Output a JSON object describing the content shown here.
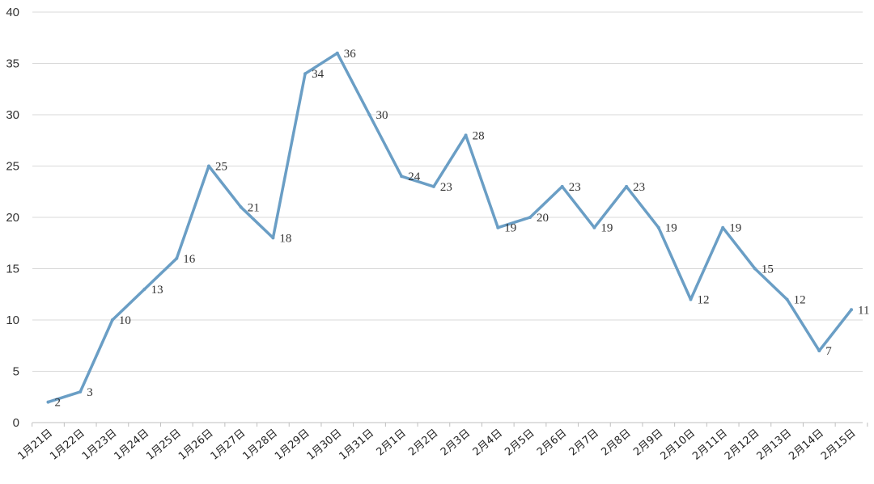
{
  "chart_data": {
    "type": "line",
    "title": "",
    "xlabel": "",
    "ylabel": "",
    "ylim": [
      0,
      40
    ],
    "yticks": [
      0,
      5,
      10,
      15,
      20,
      25,
      30,
      35,
      40
    ],
    "grid": true,
    "legend": "none",
    "categories": [
      "1月21日",
      "1月22日",
      "1月23日",
      "1月24日",
      "1月25日",
      "1月26日",
      "1月27日",
      "1月28日",
      "1月29日",
      "1月30日",
      "1月31日",
      "2月1日",
      "2月2日",
      "2月3日",
      "2月4日",
      "2月5日",
      "2月6日",
      "2月7日",
      "2月8日",
      "2月9日",
      "2月10日",
      "2月11日",
      "2月12日",
      "2月13日",
      "2月14日",
      "2月15日"
    ],
    "series": [
      {
        "values": [
          2,
          3,
          10,
          13,
          16,
          25,
          21,
          18,
          34,
          36,
          30,
          24,
          23,
          28,
          19,
          20,
          23,
          19,
          23,
          19,
          12,
          19,
          15,
          12,
          7,
          11
        ]
      }
    ],
    "colors": {
      "line": "#6a9ec5",
      "grid": "#d9d9d9",
      "axis": "#bfbfbf"
    }
  }
}
